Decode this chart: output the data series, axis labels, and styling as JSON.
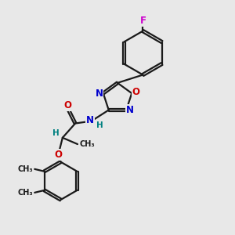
{
  "bg_color": "#e8e8e8",
  "bond_color": "#1a1a1a",
  "bond_width": 1.6,
  "atom_colors": {
    "N": "#0000cc",
    "O": "#cc0000",
    "F": "#cc00cc",
    "C": "#1a1a1a",
    "H": "#008080"
  },
  "font_size_atom": 8.5,
  "font_size_small": 7.0,
  "xlim": [
    0,
    10
  ],
  "ylim": [
    0,
    10
  ]
}
